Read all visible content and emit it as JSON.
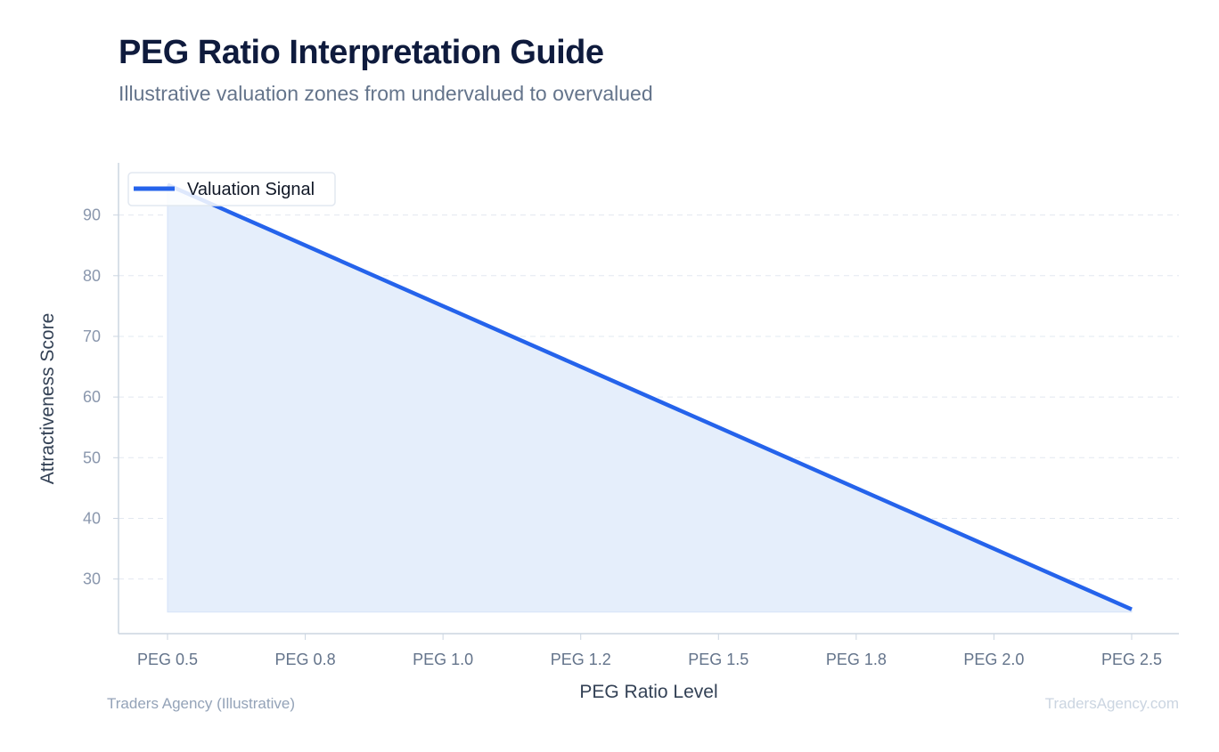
{
  "chart_data": {
    "type": "area",
    "title": "PEG Ratio Interpretation Guide",
    "subtitle": "Illustrative valuation zones from undervalued to overvalued",
    "xlabel": "PEG Ratio Level",
    "ylabel": "Attractiveness Score",
    "categories": [
      "PEG 0.5",
      "PEG 0.8",
      "PEG 1.0",
      "PEG 1.2",
      "PEG 1.5",
      "PEG 1.8",
      "PEG 2.0",
      "PEG 2.5"
    ],
    "series": [
      {
        "name": "Valuation Signal",
        "values": [
          95,
          85,
          75,
          65,
          55,
          45,
          35,
          25
        ],
        "color": "#2563eb",
        "fill": "#e5eefb"
      }
    ],
    "yticks": [
      30,
      40,
      50,
      60,
      70,
      80,
      90
    ],
    "ylim": [
      21,
      98.6
    ],
    "grid": "horizontal dashed",
    "legend": "top-left",
    "footer_left": "Traders Agency (Illustrative)",
    "footer_right": "TradersAgency.com"
  }
}
